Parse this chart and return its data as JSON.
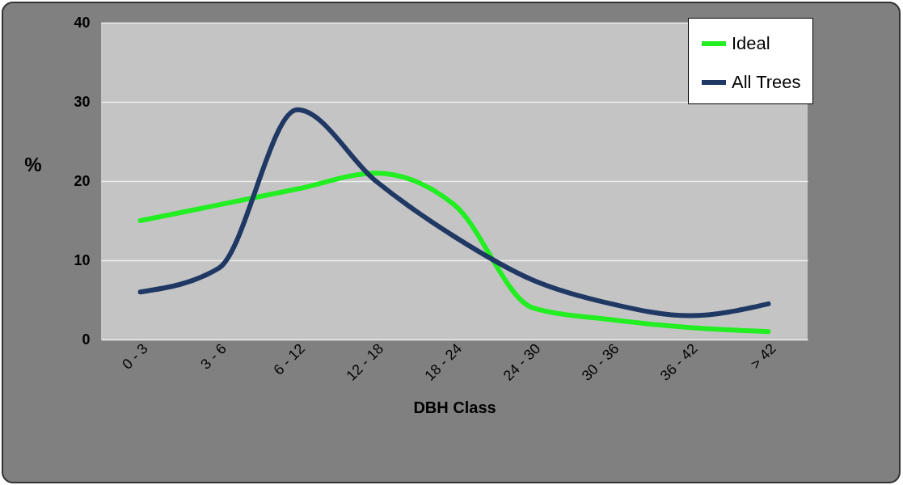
{
  "chart_data": {
    "type": "line",
    "xlabel": "DBH Class",
    "ylabel": "%",
    "categories": [
      "0 - 3",
      "3 - 6",
      "6 - 12",
      "12 - 18",
      "18 - 24",
      "24 - 30",
      "30 - 36",
      "36 - 42",
      "> 42"
    ],
    "series": [
      {
        "name": "Ideal",
        "color": "#22ee22",
        "values": [
          15,
          17,
          19,
          21,
          17,
          4,
          2.5,
          1.5,
          1
        ]
      },
      {
        "name": "All Trees",
        "color": "#1f3864",
        "values": [
          6,
          9,
          29,
          20,
          13,
          7.5,
          4.5,
          3,
          4.5
        ]
      }
    ],
    "ylim": [
      0,
      40
    ],
    "yticks": [
      0,
      10,
      20,
      30,
      40
    ],
    "grid": "y",
    "legend": "top right"
  }
}
